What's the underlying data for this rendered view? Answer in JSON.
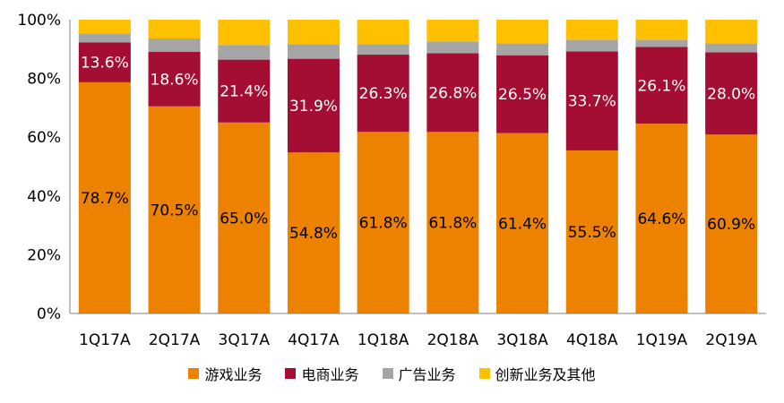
{
  "chart_data": {
    "type": "bar",
    "stacked": true,
    "categories": [
      "1Q17A",
      "2Q17A",
      "3Q17A",
      "4Q17A",
      "1Q18A",
      "2Q18A",
      "3Q18A",
      "4Q18A",
      "1Q19A",
      "2Q19A"
    ],
    "y_ticks": [
      "0%",
      "20%",
      "40%",
      "60%",
      "80%",
      "100%"
    ],
    "ylim": [
      0,
      100
    ],
    "series": [
      {
        "name": "游戏业务",
        "color": "#ED8200",
        "values": [
          78.7,
          70.5,
          65.0,
          54.8,
          61.8,
          61.8,
          61.4,
          55.5,
          64.6,
          60.9
        ],
        "labels": [
          "78.7%",
          "70.5%",
          "65.0%",
          "54.8%",
          "61.8%",
          "61.8%",
          "61.4%",
          "55.5%",
          "64.6%",
          "60.9%"
        ]
      },
      {
        "name": "电商业务",
        "color": "#A50E33",
        "values": [
          13.6,
          18.6,
          21.4,
          31.9,
          26.3,
          26.8,
          26.5,
          33.7,
          26.1,
          28.0
        ],
        "labels": [
          "13.6%",
          "18.6%",
          "21.4%",
          "31.9%",
          "26.3%",
          "26.8%",
          "26.5%",
          "33.7%",
          "26.1%",
          "28.0%"
        ]
      },
      {
        "name": "广告业务",
        "color": "#A5A5A5",
        "values": [
          3.0,
          4.5,
          5.0,
          5.0,
          3.5,
          4.0,
          4.0,
          4.0,
          2.5,
          3.0
        ]
      },
      {
        "name": "创新业务及其他",
        "color": "#FFC000",
        "values": [
          4.7,
          6.4,
          8.6,
          8.3,
          8.4,
          7.4,
          8.1,
          6.8,
          6.8,
          8.1
        ]
      }
    ]
  }
}
